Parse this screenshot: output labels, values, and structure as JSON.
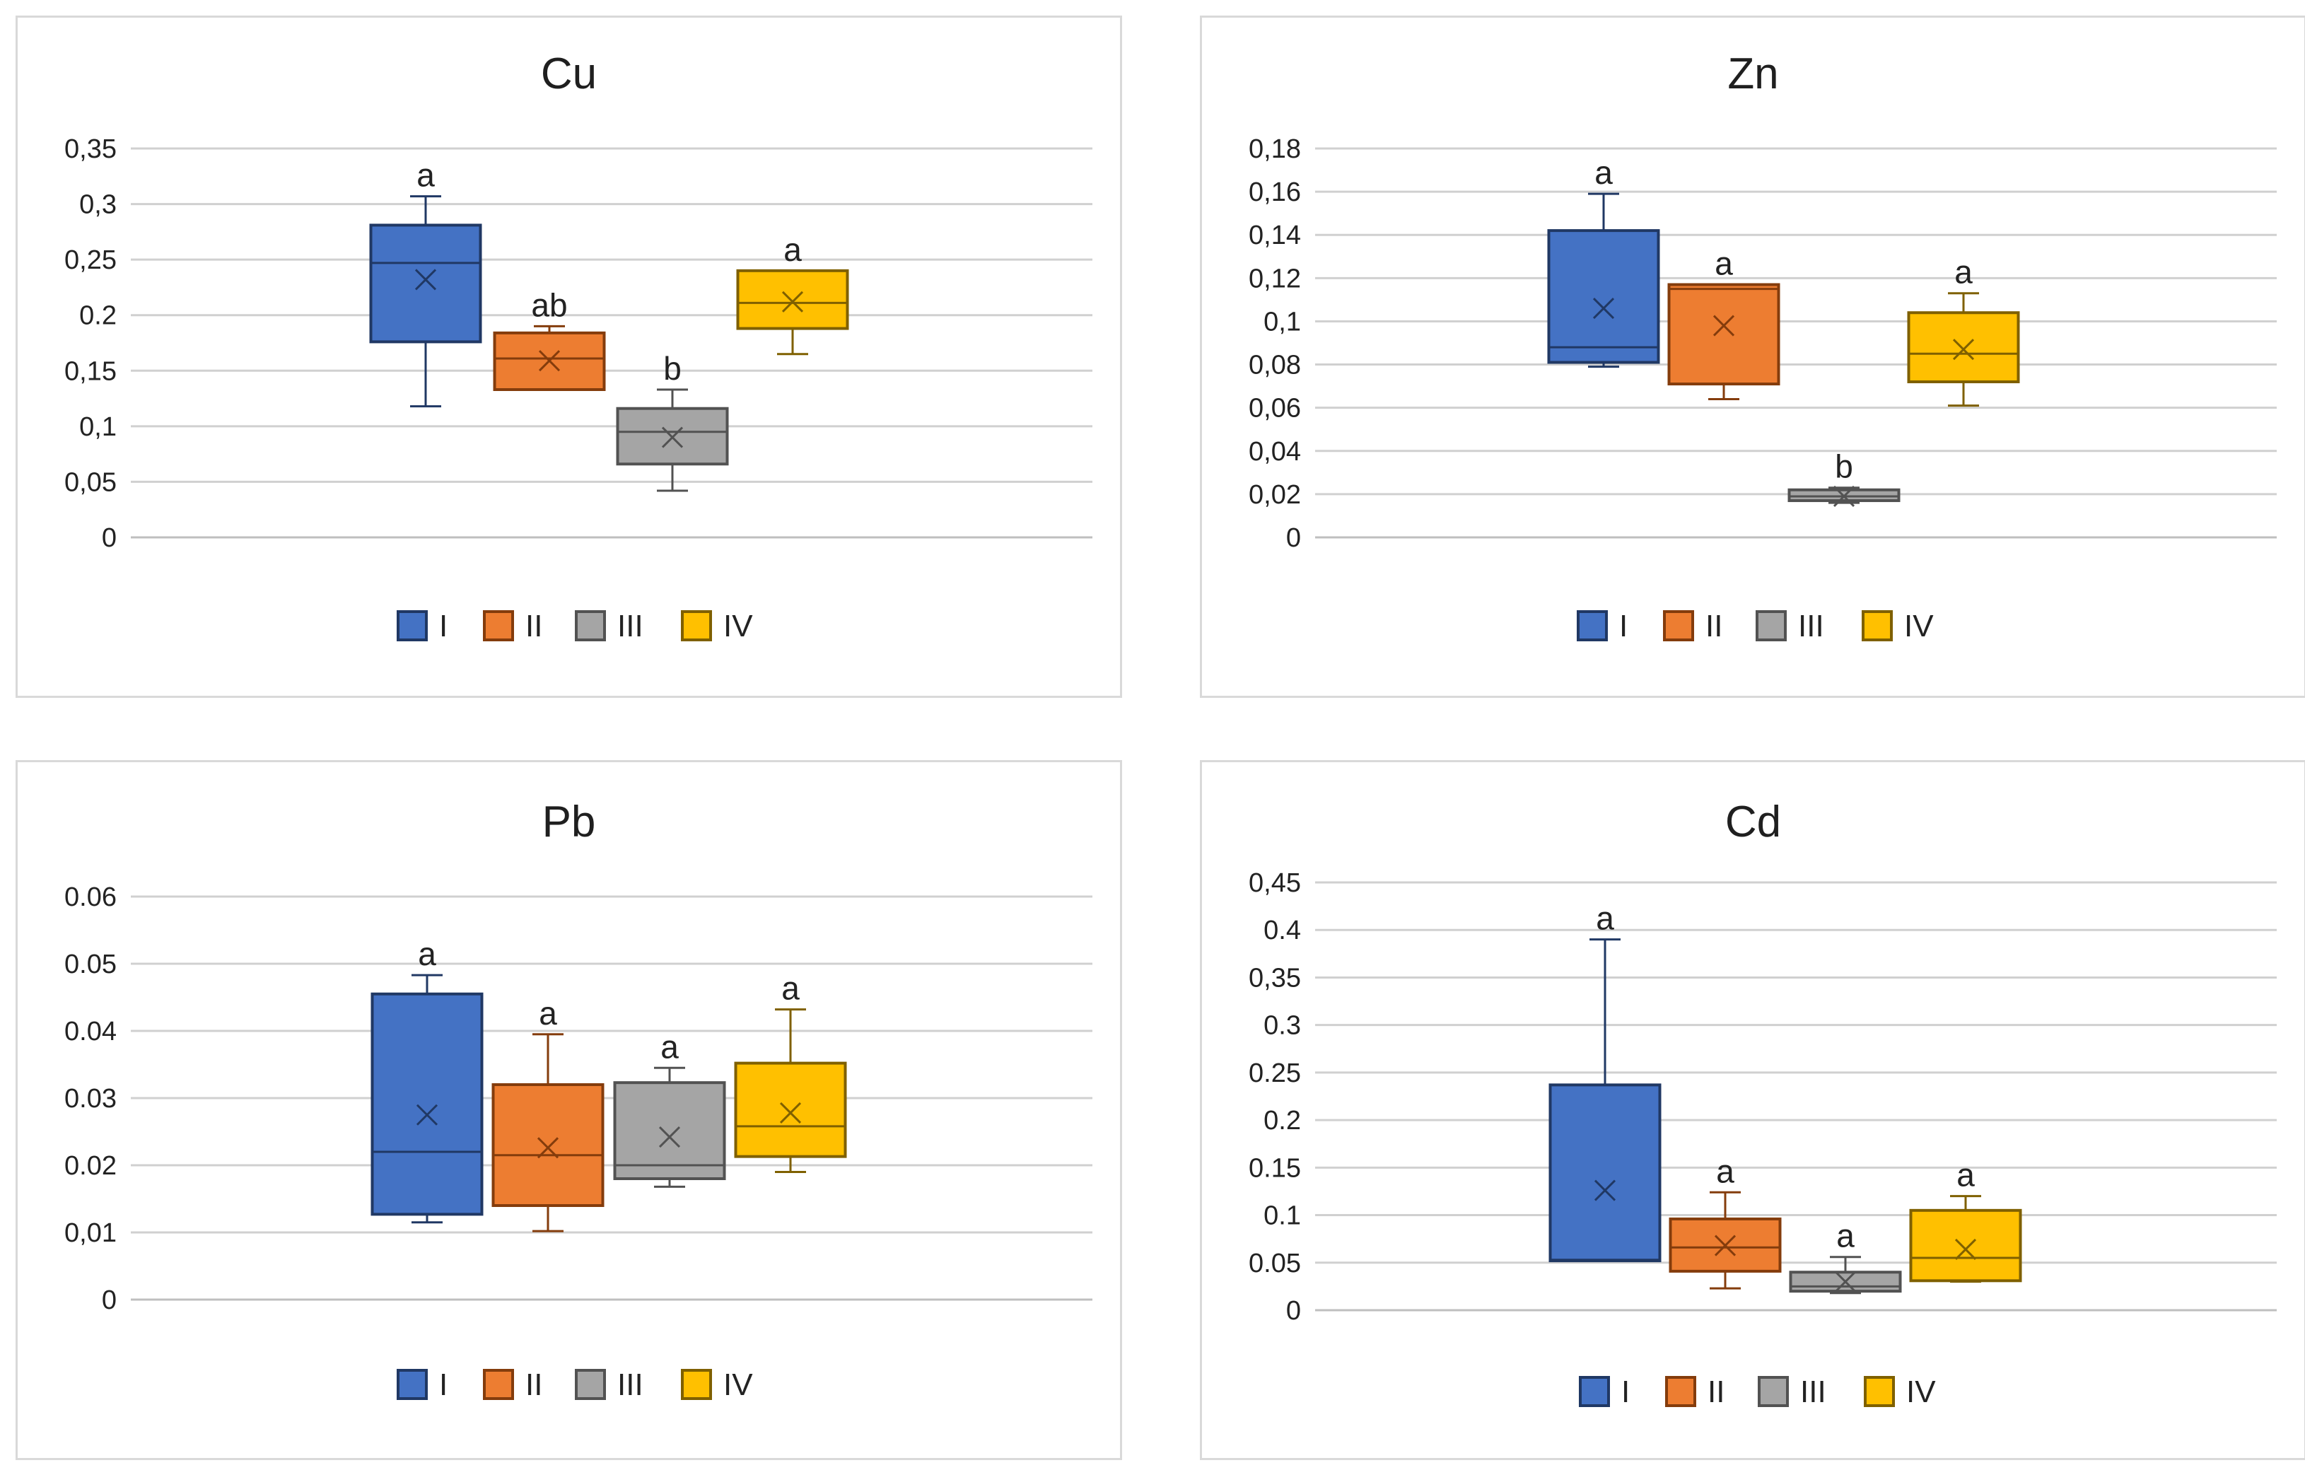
{
  "series": [
    {
      "name": "I",
      "fill": "#4472c4",
      "stroke": "#203864"
    },
    {
      "name": "II",
      "fill": "#ed7d31",
      "stroke": "#843c0c"
    },
    {
      "name": "III",
      "fill": "#a5a5a5",
      "stroke": "#525252"
    },
    {
      "name": "IV",
      "fill": "#ffc000",
      "stroke": "#7f6000"
    }
  ],
  "chart_data": [
    {
      "type": "box",
      "title": "Cu",
      "ylim": [
        0,
        0.35
      ],
      "yticks": [
        "0",
        "0,05",
        "0,1",
        "0,15",
        "0.2",
        "0,25",
        "0,3",
        "0,35"
      ],
      "boxes": [
        {
          "series": "I",
          "min": 0.118,
          "q1": 0.176,
          "median": 0.247,
          "q3": 0.281,
          "max": 0.307,
          "mean": 0.232,
          "label": "a"
        },
        {
          "series": "II",
          "min": 0.133,
          "q1": 0.133,
          "median": 0.161,
          "q3": 0.184,
          "max": 0.19,
          "mean": 0.159,
          "label": "ab"
        },
        {
          "series": "III",
          "min": 0.042,
          "q1": 0.066,
          "median": 0.095,
          "q3": 0.116,
          "max": 0.133,
          "mean": 0.09,
          "label": "b"
        },
        {
          "series": "IV",
          "min": 0.165,
          "q1": 0.188,
          "median": 0.211,
          "q3": 0.24,
          "max": 0.24,
          "mean": 0.212,
          "label": "a"
        }
      ]
    },
    {
      "type": "box",
      "title": "Zn",
      "ylim": [
        0,
        0.18
      ],
      "yticks": [
        "0",
        "0,02",
        "0,04",
        "0,06",
        "0,08",
        "0,1",
        "0,12",
        "0,14",
        "0,16",
        "0,18"
      ],
      "boxes": [
        {
          "series": "I",
          "min": 0.079,
          "q1": 0.081,
          "median": 0.088,
          "q3": 0.142,
          "max": 0.159,
          "mean": 0.106,
          "label": "a"
        },
        {
          "series": "II",
          "min": 0.064,
          "q1": 0.071,
          "median": 0.115,
          "q3": 0.117,
          "max": 0.117,
          "mean": 0.098,
          "label": "a"
        },
        {
          "series": "III",
          "min": 0.016,
          "q1": 0.017,
          "median": 0.019,
          "q3": 0.022,
          "max": 0.023,
          "mean": 0.019,
          "label": "b"
        },
        {
          "series": "IV",
          "min": 0.061,
          "q1": 0.072,
          "median": 0.085,
          "q3": 0.104,
          "max": 0.113,
          "mean": 0.087,
          "label": "a"
        }
      ]
    },
    {
      "type": "box",
      "title": "Pb",
      "ylim": [
        0,
        0.06
      ],
      "yticks": [
        "0",
        "0,01",
        "0.02",
        "0.03",
        "0.04",
        "0.05",
        "0.06"
      ],
      "boxes": [
        {
          "series": "I",
          "min": 0.0115,
          "q1": 0.0127,
          "median": 0.022,
          "q3": 0.0455,
          "max": 0.0483,
          "mean": 0.0275,
          "label": "a"
        },
        {
          "series": "II",
          "min": 0.0102,
          "q1": 0.014,
          "median": 0.0215,
          "q3": 0.032,
          "max": 0.0395,
          "mean": 0.0226,
          "label": "a"
        },
        {
          "series": "III",
          "min": 0.0168,
          "q1": 0.018,
          "median": 0.02,
          "q3": 0.0323,
          "max": 0.0345,
          "mean": 0.0242,
          "label": "a"
        },
        {
          "series": "IV",
          "min": 0.019,
          "q1": 0.0213,
          "median": 0.0258,
          "q3": 0.0352,
          "max": 0.0432,
          "mean": 0.0278,
          "label": "a"
        }
      ]
    },
    {
      "type": "box",
      "title": "Cd",
      "ylim": [
        0,
        0.45
      ],
      "yticks": [
        "0",
        "0.05",
        "0.1",
        "0.15",
        "0.2",
        "0.25",
        "0.3",
        "0,35",
        "0.4",
        "0,45"
      ],
      "boxes": [
        {
          "series": "I",
          "min": 0.052,
          "q1": 0.052,
          "median": 0.053,
          "q3": 0.237,
          "max": 0.39,
          "mean": 0.126,
          "label": "a"
        },
        {
          "series": "II",
          "min": 0.023,
          "q1": 0.041,
          "median": 0.066,
          "q3": 0.096,
          "max": 0.124,
          "mean": 0.068,
          "label": "a"
        },
        {
          "series": "III",
          "min": 0.018,
          "q1": 0.02,
          "median": 0.025,
          "q3": 0.04,
          "max": 0.056,
          "mean": 0.03,
          "label": "a"
        },
        {
          "series": "IV",
          "min": 0.03,
          "q1": 0.031,
          "median": 0.055,
          "q3": 0.105,
          "max": 0.12,
          "mean": 0.064,
          "label": "a"
        }
      ]
    }
  ]
}
